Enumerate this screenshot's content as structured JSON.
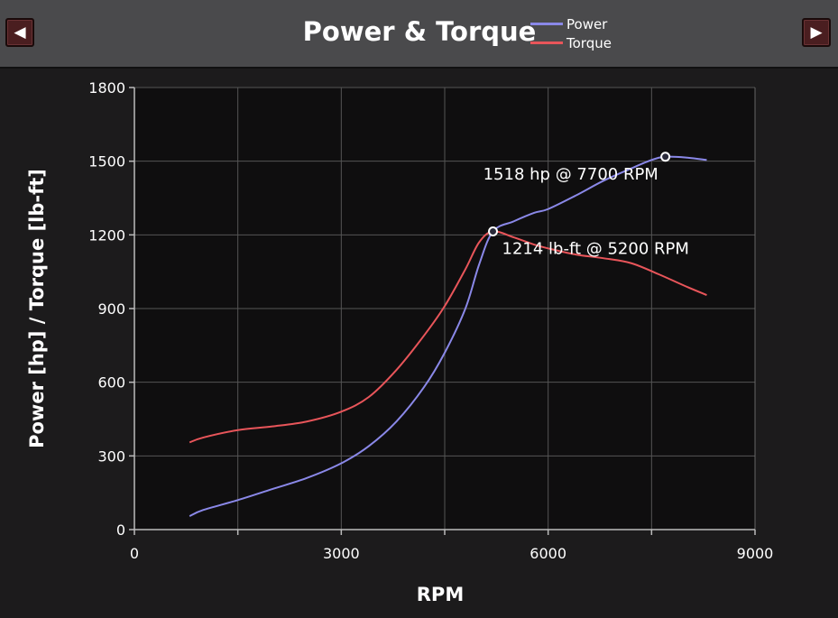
{
  "header": {
    "title": "Power & Torque",
    "prev_icon": "◀",
    "next_icon": "▶"
  },
  "legend": [
    {
      "label": "Power",
      "color": "#8a88e8"
    },
    {
      "label": "Torque",
      "color": "#e8555a"
    }
  ],
  "chart_data": {
    "type": "line",
    "title": "Power & Torque",
    "xlabel": "RPM",
    "ylabel": "Power [hp] / Torque [lb-ft]",
    "xlim": [
      0,
      9000
    ],
    "ylim": [
      0,
      1800
    ],
    "xticks": [
      0,
      3000,
      6000,
      9000
    ],
    "yticks": [
      0,
      300,
      600,
      900,
      1200,
      1500,
      1800
    ],
    "grid": true,
    "legend_position": "top",
    "series": [
      {
        "name": "Power",
        "color": "#8a88e8",
        "x": [
          800,
          1000,
          1500,
          2000,
          2500,
          3000,
          3400,
          3800,
          4200,
          4500,
          4800,
          5000,
          5200,
          5500,
          5800,
          6000,
          6400,
          6800,
          7200,
          7500,
          7700,
          8000,
          8300
        ],
        "y": [
          55,
          80,
          120,
          165,
          210,
          270,
          340,
          440,
          580,
          720,
          900,
          1080,
          1214,
          1255,
          1290,
          1305,
          1360,
          1420,
          1470,
          1505,
          1518,
          1515,
          1505
        ]
      },
      {
        "name": "Torque",
        "color": "#e8555a",
        "x": [
          800,
          1000,
          1500,
          2000,
          2500,
          3000,
          3400,
          3800,
          4200,
          4500,
          4800,
          5000,
          5200,
          5500,
          5800,
          6000,
          6400,
          6800,
          7200,
          7600,
          8000,
          8300
        ],
        "y": [
          355,
          375,
          405,
          420,
          440,
          480,
          540,
          650,
          790,
          910,
          1060,
          1170,
          1214,
          1190,
          1160,
          1145,
          1120,
          1105,
          1085,
          1040,
          990,
          955
        ]
      }
    ],
    "annotations": [
      {
        "series": "Power",
        "x": 7700,
        "y": 1518,
        "text": "1518 hp @ 7700 RPM"
      },
      {
        "series": "Torque",
        "x": 5200,
        "y": 1214,
        "text": "1214 lb-ft @ 5200 RPM"
      }
    ]
  }
}
